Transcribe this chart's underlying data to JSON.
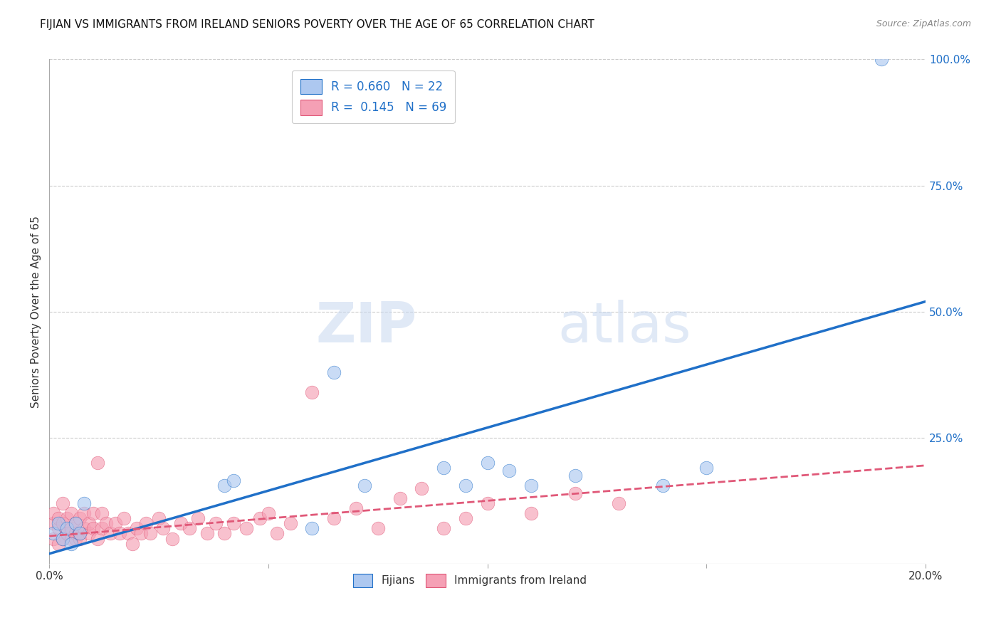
{
  "title": "FIJIAN VS IMMIGRANTS FROM IRELAND SENIORS POVERTY OVER THE AGE OF 65 CORRELATION CHART",
  "source": "Source: ZipAtlas.com",
  "ylabel": "Seniors Poverty Over the Age of 65",
  "xlim": [
    0,
    0.2
  ],
  "ylim": [
    0,
    1.0
  ],
  "fijian_R": 0.66,
  "fijian_N": 22,
  "ireland_R": 0.145,
  "ireland_N": 69,
  "fijian_color": "#adc8f0",
  "ireland_color": "#f5a0b5",
  "fijian_line_color": "#2070c8",
  "ireland_line_color": "#e05878",
  "watermark_zip": "ZIP",
  "watermark_atlas": "atlas",
  "fijian_x": [
    0.001,
    0.002,
    0.003,
    0.004,
    0.005,
    0.006,
    0.007,
    0.008,
    0.04,
    0.042,
    0.06,
    0.065,
    0.072,
    0.09,
    0.095,
    0.1,
    0.105,
    0.11,
    0.12,
    0.14,
    0.15,
    0.19
  ],
  "fijian_y": [
    0.06,
    0.08,
    0.05,
    0.07,
    0.04,
    0.08,
    0.06,
    0.12,
    0.155,
    0.165,
    0.07,
    0.38,
    0.155,
    0.19,
    0.155,
    0.2,
    0.185,
    0.155,
    0.175,
    0.155,
    0.19,
    1.0
  ],
  "fijian_line_x": [
    0.0,
    0.2
  ],
  "fijian_line_y": [
    0.02,
    0.52
  ],
  "ireland_line_x": [
    0.0,
    0.2
  ],
  "ireland_line_y": [
    0.055,
    0.195
  ],
  "ireland_x": [
    0.001,
    0.001,
    0.001,
    0.002,
    0.002,
    0.002,
    0.003,
    0.003,
    0.003,
    0.004,
    0.004,
    0.004,
    0.005,
    0.005,
    0.005,
    0.006,
    0.006,
    0.006,
    0.007,
    0.007,
    0.007,
    0.008,
    0.008,
    0.009,
    0.009,
    0.01,
    0.01,
    0.011,
    0.011,
    0.012,
    0.012,
    0.013,
    0.014,
    0.015,
    0.016,
    0.017,
    0.018,
    0.019,
    0.02,
    0.021,
    0.022,
    0.023,
    0.025,
    0.026,
    0.028,
    0.03,
    0.032,
    0.034,
    0.036,
    0.038,
    0.04,
    0.042,
    0.045,
    0.048,
    0.05,
    0.052,
    0.055,
    0.06,
    0.065,
    0.07,
    0.075,
    0.08,
    0.085,
    0.09,
    0.095,
    0.1,
    0.11,
    0.12,
    0.13
  ],
  "ireland_y": [
    0.05,
    0.08,
    0.1,
    0.04,
    0.07,
    0.09,
    0.05,
    0.08,
    0.12,
    0.06,
    0.09,
    0.06,
    0.05,
    0.07,
    0.1,
    0.05,
    0.08,
    0.06,
    0.06,
    0.09,
    0.05,
    0.07,
    0.1,
    0.06,
    0.08,
    0.07,
    0.1,
    0.05,
    0.2,
    0.07,
    0.1,
    0.08,
    0.06,
    0.08,
    0.06,
    0.09,
    0.06,
    0.04,
    0.07,
    0.06,
    0.08,
    0.06,
    0.09,
    0.07,
    0.05,
    0.08,
    0.07,
    0.09,
    0.06,
    0.08,
    0.06,
    0.08,
    0.07,
    0.09,
    0.1,
    0.06,
    0.08,
    0.34,
    0.09,
    0.11,
    0.07,
    0.13,
    0.15,
    0.07,
    0.09,
    0.12,
    0.1,
    0.14,
    0.12
  ]
}
